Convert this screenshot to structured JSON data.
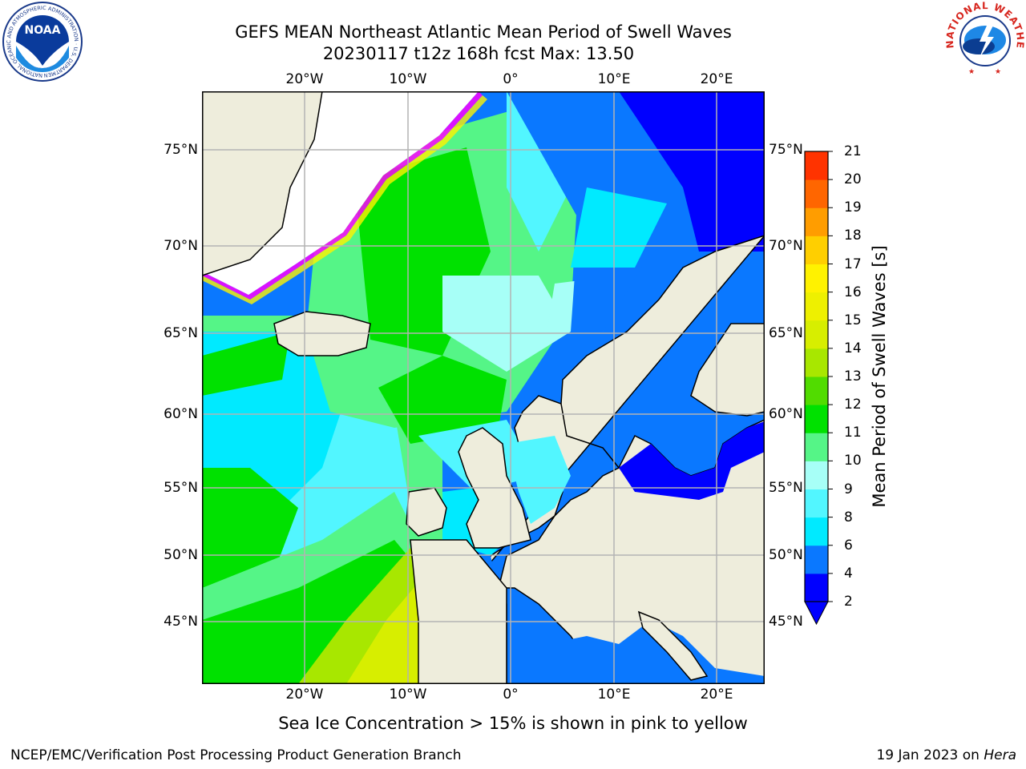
{
  "header": {
    "title_line1": "GEFS MEAN Northeast Atlantic Mean Period of Swell Waves",
    "title_line2": "20230117 t12z 168h fcst   Max: 13.50"
  },
  "logos": {
    "noaa_text": "NOAA",
    "noaa_ring_text": "NATIONAL OCEANIC AND ATMOSPHERIC ADMINISTRATION · U.S. DEPARTMENT OF COMMERCE",
    "nws_ring_text": "NATIONAL WEATHER SERVICE"
  },
  "map": {
    "lon_labels": [
      "20°W",
      "10°W",
      "0°",
      "10°E",
      "20°E"
    ],
    "lat_labels": [
      "75°N",
      "70°N",
      "65°N",
      "60°N",
      "55°N",
      "50°N",
      "45°N"
    ],
    "colors": {
      "land": "#eeeddc",
      "grid": "#b3b3b3",
      "coast": "#000000"
    }
  },
  "colorbar": {
    "label": "Mean Period of Swell Waves [s]",
    "ticks": [
      "2",
      "4",
      "6",
      "8",
      "9",
      "10",
      "11",
      "12",
      "13",
      "14",
      "15",
      "16",
      "17",
      "18",
      "19",
      "20",
      "21"
    ],
    "colors": [
      "#0000ff",
      "#0a78ff",
      "#00eaff",
      "#52f6ff",
      "#a7fff7",
      "#55f587",
      "#00e100",
      "#51dc00",
      "#a8e700",
      "#d7ee00",
      "#eef000",
      "#fff200",
      "#ffcf00",
      "#ff9d00",
      "#ff6600",
      "#ff3300",
      "#ff0000"
    ],
    "extend": "min"
  },
  "footer": {
    "note": "Sea Ice Concentration > 15% is shown in pink to yellow",
    "credit": "NCEP/EMC/Verification Post Processing Product Generation Branch",
    "date": "19 Jan 2023 on ",
    "host": "Hera"
  }
}
